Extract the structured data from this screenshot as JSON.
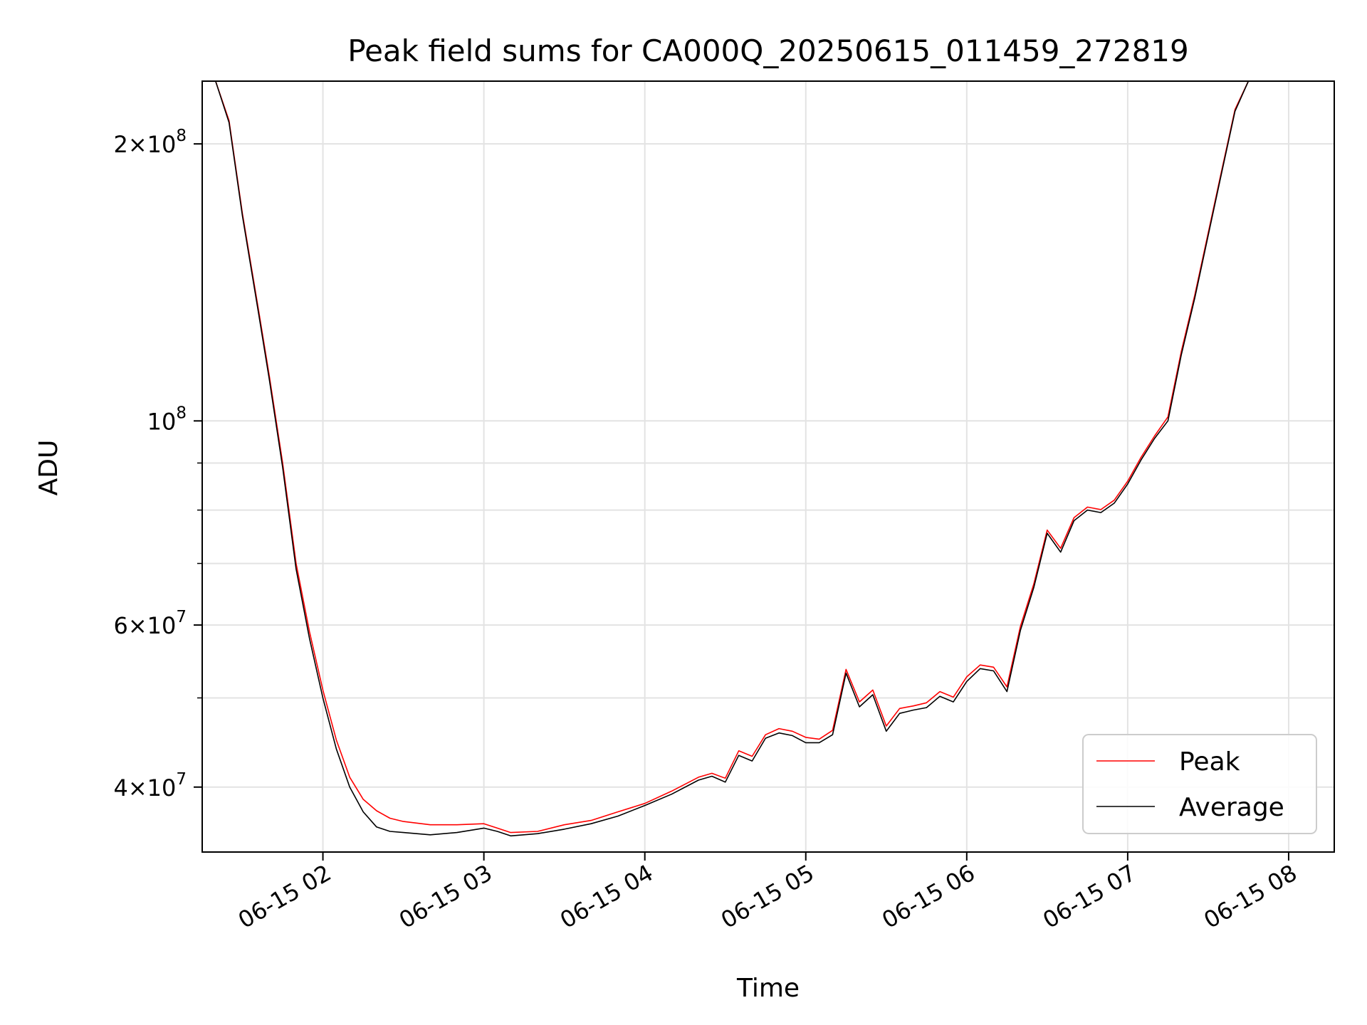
{
  "chart_data": {
    "type": "line",
    "title": "Peak field sums for CA000Q_20250615_011459_272819",
    "xlabel": "Time",
    "ylabel": "ADU",
    "y_scale": "log",
    "ylim": [
      34000000,
      234000000
    ],
    "xlim": [
      "2025-06-15 01:15",
      "2025-06-15 08:17"
    ],
    "grid": true,
    "legend": "lower right",
    "x_ticks": [
      {
        "t": "2025-06-15 02:00",
        "label": "06-15 02"
      },
      {
        "t": "2025-06-15 03:00",
        "label": "06-15 03"
      },
      {
        "t": "2025-06-15 04:00",
        "label": "06-15 04"
      },
      {
        "t": "2025-06-15 05:00",
        "label": "06-15 05"
      },
      {
        "t": "2025-06-15 06:00",
        "label": "06-15 06"
      },
      {
        "t": "2025-06-15 07:00",
        "label": "06-15 07"
      },
      {
        "t": "2025-06-15 08:00",
        "label": "06-15 08"
      }
    ],
    "y_major_ticks": [
      {
        "value": 40000000,
        "base": "4×10",
        "exp": "7"
      },
      {
        "value": 60000000,
        "base": "6×10",
        "exp": "7"
      },
      {
        "value": 100000000,
        "base": "10",
        "exp": "8"
      },
      {
        "value": 200000000,
        "base": "2×10",
        "exp": "8"
      }
    ],
    "y_minor_ticks": [
      50000000,
      70000000,
      80000000,
      90000000
    ],
    "series": [
      {
        "name": "Peak",
        "color": "#ff0000",
        "x": [
          "2025-06-15 01:15",
          "2025-06-15 01:20",
          "2025-06-15 01:25",
          "2025-06-15 01:30",
          "2025-06-15 01:36",
          "2025-06-15 01:40",
          "2025-06-15 01:45",
          "2025-06-15 01:50",
          "2025-06-15 01:55",
          "2025-06-15 02:00",
          "2025-06-15 02:05",
          "2025-06-15 02:10",
          "2025-06-15 02:15",
          "2025-06-15 02:20",
          "2025-06-15 02:25",
          "2025-06-15 02:30",
          "2025-06-15 02:40",
          "2025-06-15 02:50",
          "2025-06-15 03:00",
          "2025-06-15 03:05",
          "2025-06-15 03:10",
          "2025-06-15 03:20",
          "2025-06-15 03:30",
          "2025-06-15 03:40",
          "2025-06-15 03:50",
          "2025-06-15 04:00",
          "2025-06-15 04:10",
          "2025-06-15 04:20",
          "2025-06-15 04:25",
          "2025-06-15 04:30",
          "2025-06-15 04:35",
          "2025-06-15 04:40",
          "2025-06-15 04:45",
          "2025-06-15 04:50",
          "2025-06-15 04:55",
          "2025-06-15 05:00",
          "2025-06-15 05:05",
          "2025-06-15 05:10",
          "2025-06-15 05:15",
          "2025-06-15 05:20",
          "2025-06-15 05:25",
          "2025-06-15 05:30",
          "2025-06-15 05:35",
          "2025-06-15 05:40",
          "2025-06-15 05:45",
          "2025-06-15 05:50",
          "2025-06-15 05:55",
          "2025-06-15 06:00",
          "2025-06-15 06:05",
          "2025-06-15 06:10",
          "2025-06-15 06:15",
          "2025-06-15 06:20",
          "2025-06-15 06:25",
          "2025-06-15 06:30",
          "2025-06-15 06:35",
          "2025-06-15 06:40",
          "2025-06-15 06:45",
          "2025-06-15 06:50",
          "2025-06-15 06:55",
          "2025-06-15 07:00",
          "2025-06-15 07:05",
          "2025-06-15 07:10",
          "2025-06-15 07:15",
          "2025-06-15 07:20",
          "2025-06-15 07:25",
          "2025-06-15 07:30",
          "2025-06-15 07:35",
          "2025-06-15 07:40",
          "2025-06-15 07:45",
          "2025-06-15 07:50",
          "2025-06-15 07:55",
          "2025-06-15 08:00",
          "2025-06-15 08:05",
          "2025-06-15 08:10",
          "2025-06-15 08:17"
        ],
        "y": [
          234000000,
          234000000,
          212000000,
          168000000,
          132000000,
          112000000,
          90000000,
          70000000,
          59000000,
          51000000,
          45000000,
          41000000,
          38800000,
          37700000,
          37000000,
          36700000,
          36400000,
          36400000,
          36500000,
          36100000,
          35700000,
          35800000,
          36400000,
          36800000,
          37600000,
          38400000,
          39600000,
          41000000,
          41400000,
          40900000,
          43800000,
          43200000,
          45600000,
          46300000,
          46000000,
          45300000,
          45100000,
          46100000,
          53700000,
          49500000,
          51000000,
          46600000,
          48700000,
          49000000,
          49400000,
          50800000,
          50100000,
          52700000,
          54300000,
          54000000,
          51400000,
          59800000,
          66500000,
          76100000,
          72700000,
          78500000,
          80600000,
          80100000,
          82000000,
          86000000,
          91300000,
          96300000,
          101000000,
          119000000,
          137000000,
          160000000,
          187000000,
          218000000,
          234000000,
          234000000,
          234000000,
          234000000,
          234000000,
          234000000,
          234000000
        ]
      },
      {
        "name": "Average",
        "color": "#000000",
        "x": [
          "2025-06-15 01:15",
          "2025-06-15 01:20",
          "2025-06-15 01:25",
          "2025-06-15 01:30",
          "2025-06-15 01:36",
          "2025-06-15 01:40",
          "2025-06-15 01:45",
          "2025-06-15 01:50",
          "2025-06-15 01:55",
          "2025-06-15 02:00",
          "2025-06-15 02:05",
          "2025-06-15 02:10",
          "2025-06-15 02:15",
          "2025-06-15 02:20",
          "2025-06-15 02:25",
          "2025-06-15 02:30",
          "2025-06-15 02:40",
          "2025-06-15 02:50",
          "2025-06-15 03:00",
          "2025-06-15 03:05",
          "2025-06-15 03:10",
          "2025-06-15 03:20",
          "2025-06-15 03:30",
          "2025-06-15 03:40",
          "2025-06-15 03:50",
          "2025-06-15 04:00",
          "2025-06-15 04:10",
          "2025-06-15 04:20",
          "2025-06-15 04:25",
          "2025-06-15 04:30",
          "2025-06-15 04:35",
          "2025-06-15 04:40",
          "2025-06-15 04:45",
          "2025-06-15 04:50",
          "2025-06-15 04:55",
          "2025-06-15 05:00",
          "2025-06-15 05:05",
          "2025-06-15 05:10",
          "2025-06-15 05:15",
          "2025-06-15 05:20",
          "2025-06-15 05:25",
          "2025-06-15 05:30",
          "2025-06-15 05:35",
          "2025-06-15 05:40",
          "2025-06-15 05:45",
          "2025-06-15 05:50",
          "2025-06-15 05:55",
          "2025-06-15 06:00",
          "2025-06-15 06:05",
          "2025-06-15 06:10",
          "2025-06-15 06:15",
          "2025-06-15 06:20",
          "2025-06-15 06:25",
          "2025-06-15 06:30",
          "2025-06-15 06:35",
          "2025-06-15 06:40",
          "2025-06-15 06:45",
          "2025-06-15 06:50",
          "2025-06-15 06:55",
          "2025-06-15 07:00",
          "2025-06-15 07:05",
          "2025-06-15 07:10",
          "2025-06-15 07:15",
          "2025-06-15 07:20",
          "2025-06-15 07:25",
          "2025-06-15 07:30",
          "2025-06-15 07:35",
          "2025-06-15 07:40",
          "2025-06-15 07:45",
          "2025-06-15 07:50",
          "2025-06-15 07:55",
          "2025-06-15 08:00",
          "2025-06-15 08:05",
          "2025-06-15 08:10",
          "2025-06-15 08:17"
        ],
        "y": [
          234000000,
          234000000,
          211000000,
          167000000,
          131000000,
          111000000,
          89000000,
          69000000,
          58000000,
          50000000,
          44000000,
          40000000,
          37600000,
          36200000,
          35800000,
          35700000,
          35500000,
          35700000,
          36100000,
          35800000,
          35400000,
          35600000,
          36000000,
          36500000,
          37200000,
          38200000,
          39300000,
          40700000,
          41100000,
          40500000,
          43300000,
          42700000,
          45200000,
          45800000,
          45500000,
          44700000,
          44700000,
          45600000,
          53200000,
          48900000,
          50400000,
          46000000,
          48100000,
          48500000,
          48800000,
          50200000,
          49500000,
          52100000,
          53800000,
          53500000,
          50800000,
          59200000,
          65900000,
          75500000,
          72000000,
          77900000,
          80000000,
          79500000,
          81400000,
          85400000,
          90700000,
          95700000,
          100000000,
          118000000,
          136000000,
          159000000,
          186000000,
          217000000,
          234000000,
          234000000,
          234000000,
          234000000,
          234000000,
          234000000,
          234000000
        ]
      }
    ]
  }
}
